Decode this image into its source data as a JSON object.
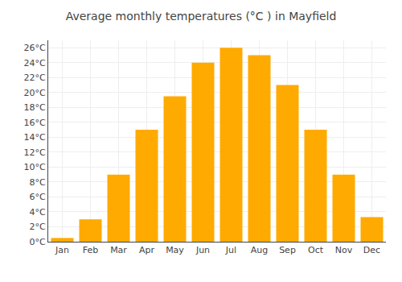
{
  "chart_data": {
    "type": "bar",
    "title": "Average monthly temperatures (°C ) in Mayfield",
    "categories": [
      "Jan",
      "Feb",
      "Mar",
      "Apr",
      "May",
      "Jun",
      "Jul",
      "Aug",
      "Sep",
      "Oct",
      "Nov",
      "Dec"
    ],
    "values": [
      0.5,
      3.0,
      9.0,
      15.0,
      19.5,
      24.0,
      26.0,
      25.0,
      21.0,
      15.0,
      9.0,
      3.3
    ],
    "color": "#FFAA00",
    "ylim": [
      0,
      27
    ],
    "yticks": [
      {
        "value": 0,
        "label": "0°C"
      },
      {
        "value": 2,
        "label": "2°C"
      },
      {
        "value": 4,
        "label": "4°C"
      },
      {
        "value": 6,
        "label": "6°C"
      },
      {
        "value": 8,
        "label": "8°C"
      },
      {
        "value": 10,
        "label": "10°C"
      },
      {
        "value": 12,
        "label": "12°C"
      },
      {
        "value": 14,
        "label": "14°C"
      },
      {
        "value": 16,
        "label": "16°C"
      },
      {
        "value": 18,
        "label": "18°C"
      },
      {
        "value": 20,
        "label": "20°C"
      },
      {
        "value": 22,
        "label": "22°C"
      },
      {
        "value": 24,
        "label": "24°C"
      },
      {
        "value": 26,
        "label": "26°C"
      }
    ],
    "grid": true
  }
}
